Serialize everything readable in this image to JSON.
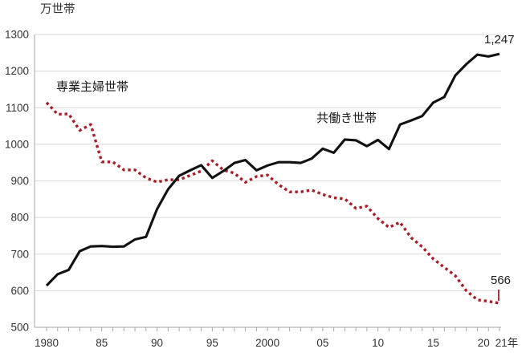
{
  "chart_data": {
    "type": "line",
    "title": "",
    "unit_label": "万世帯",
    "grid": "horizontal",
    "legend_position": "inline-labels",
    "ylim": [
      500,
      1300
    ],
    "yticks": [
      500,
      600,
      700,
      800,
      900,
      1000,
      1100,
      1200,
      1300
    ],
    "years": [
      1980,
      1981,
      1982,
      1983,
      1984,
      1985,
      1986,
      1987,
      1988,
      1989,
      1990,
      1991,
      1992,
      1993,
      1994,
      1995,
      1996,
      1997,
      1998,
      1999,
      2000,
      2001,
      2002,
      2003,
      2004,
      2005,
      2006,
      2007,
      2008,
      2009,
      2010,
      2011,
      2012,
      2013,
      2014,
      2015,
      2016,
      2017,
      2018,
      2019,
      2020,
      2021
    ],
    "xticks": [
      {
        "year": 1980,
        "label": "1980"
      },
      {
        "year": 1985,
        "label": "85"
      },
      {
        "year": 1990,
        "label": "90"
      },
      {
        "year": 1995,
        "label": "95"
      },
      {
        "year": 2000,
        "label": "2000"
      },
      {
        "year": 2005,
        "label": "05"
      },
      {
        "year": 2010,
        "label": "10"
      },
      {
        "year": 2015,
        "label": "15"
      },
      {
        "year": 2020,
        "label": "20",
        "dx": -6
      },
      {
        "year": 2021,
        "label": "21年",
        "dx": 9
      }
    ],
    "series": [
      {
        "name": "専業主婦世帯",
        "style": "dotted",
        "color": "#a81e27",
        "end_label": "566",
        "values": [
          1114,
          1082,
          1083,
          1038,
          1054,
          952,
          952,
          930,
          930,
          908,
          897,
          903,
          903,
          915,
          927,
          955,
          930,
          921,
          896,
          912,
          916,
          890,
          870,
          870,
          875,
          863,
          854,
          851,
          825,
          831,
          797,
          773,
          787,
          745,
          720,
          687,
          664,
          641,
          600,
          575,
          571,
          566
        ]
      },
      {
        "name": "共働き世帯",
        "style": "solid",
        "color": "#111111",
        "end_label": "1,247",
        "values": [
          614,
          645,
          657,
          708,
          721,
          722,
          720,
          721,
          740,
          747,
          823,
          877,
          914,
          929,
          943,
          908,
          927,
          949,
          957,
          929,
          942,
          951,
          951,
          949,
          961,
          988,
          977,
          1013,
          1011,
          995,
          1012,
          987,
          1054,
          1065,
          1077,
          1114,
          1129,
          1188,
          1219,
          1245,
          1240,
          1247
        ]
      }
    ],
    "colors": {
      "grid": "#d9d9d9",
      "axis": "#a6a6a6",
      "text": "#333333",
      "background": "#ffffff"
    }
  }
}
